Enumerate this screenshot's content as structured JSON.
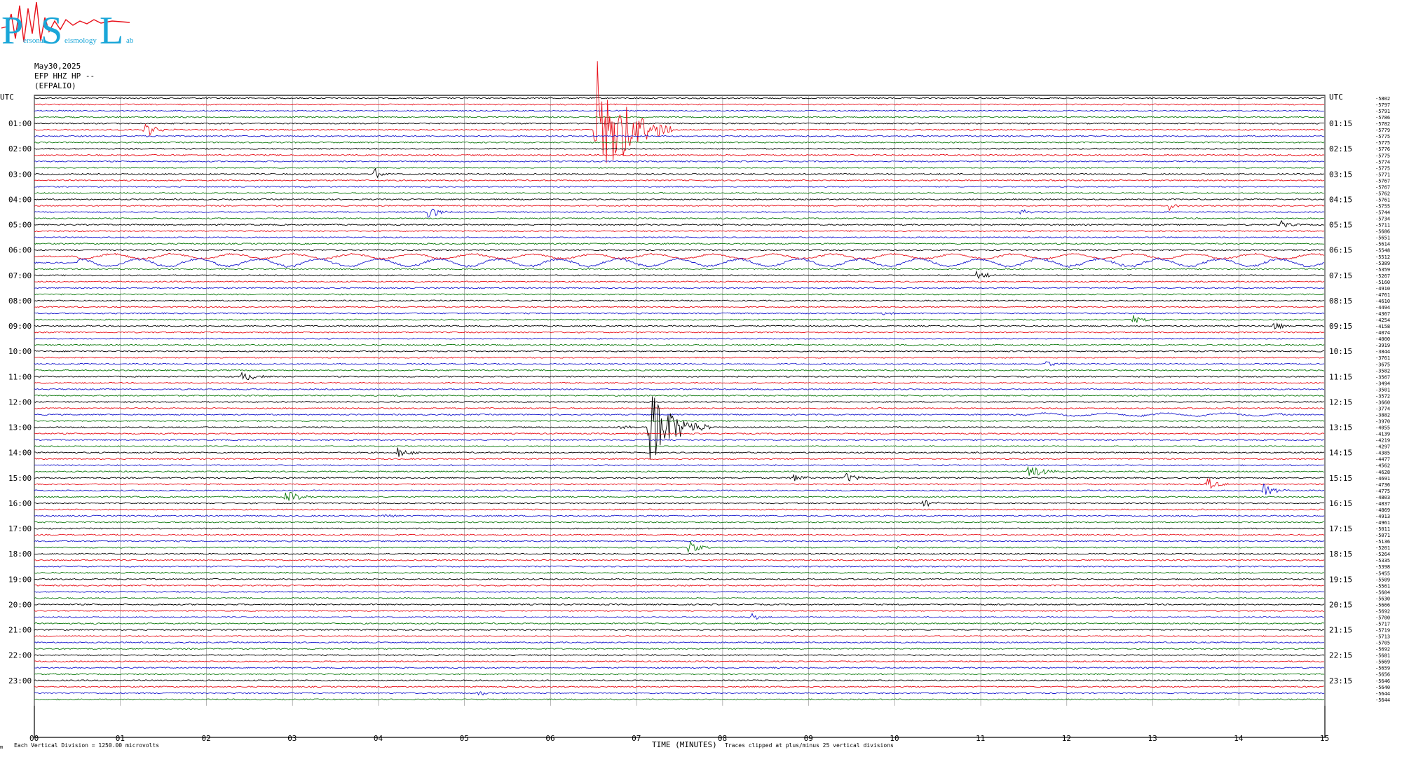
{
  "logo": {
    "letters": [
      "P",
      "S",
      "L"
    ],
    "words": [
      "ersonal",
      "eismology",
      "ab"
    ],
    "colors": {
      "letters": "#1aa6d8",
      "wave": "#e8111b"
    }
  },
  "header": {
    "date": "May30,2025",
    "channel": "EFP HHZ HP --",
    "station": "(EFPALIO)"
  },
  "axes": {
    "left_label": "UTC",
    "right_label": "UTC",
    "xlabel": "TIME (MINUTES)",
    "footer_left": "Each Vertical Division = 1250.00 microvolts",
    "footer_right": "Traces clipped at plus/minus 25 vertical divisions",
    "corner_mark": "m"
  },
  "chart_data": {
    "type": "line",
    "title": "",
    "xlabel": "TIME (MINUTES)",
    "xlim": [
      0,
      15
    ],
    "x_ticks": [
      "00",
      "01",
      "02",
      "03",
      "04",
      "05",
      "06",
      "07",
      "08",
      "09",
      "10",
      "11",
      "12",
      "13",
      "14",
      "15"
    ],
    "rows_per_hour": 4,
    "line_minutes": 15,
    "trace_colors": [
      "#000000",
      "#e8111b",
      "#1a1acd",
      "#0f7a0f"
    ],
    "left_hour_labels": [
      "01:00",
      "02:00",
      "03:00",
      "04:00",
      "05:00",
      "06:00",
      "07:00",
      "08:00",
      "09:00",
      "10:00",
      "11:00",
      "12:00",
      "13:00",
      "14:00",
      "15:00",
      "16:00",
      "17:00",
      "18:00",
      "19:00",
      "20:00",
      "21:00",
      "22:00",
      "23:00"
    ],
    "right_hour_labels": [
      "01:15",
      "02:15",
      "03:15",
      "04:15",
      "05:15",
      "06:15",
      "07:15",
      "08:15",
      "09:15",
      "10:15",
      "11:15",
      "12:15",
      "13:15",
      "14:15",
      "15:15",
      "16:15",
      "17:15",
      "18:15",
      "19:15",
      "20:15",
      "21:15",
      "22:15",
      "23:15"
    ],
    "trace_offsets": [
      -5802,
      -5797,
      -5791,
      -5786,
      -5782,
      -5779,
      -5775,
      -5775,
      -5776,
      -5775,
      -5774,
      -5775,
      -5771,
      -5767,
      -5767,
      -5762,
      -5761,
      -5755,
      -5744,
      -5734,
      -5711,
      -5686,
      -5651,
      -5614,
      -5548,
      -5512,
      -5389,
      -5359,
      -5267,
      -5160,
      -4910,
      -4761,
      -4610,
      -4494,
      -4367,
      -4254,
      -4158,
      -4074,
      -4000,
      -3919,
      -3844,
      -3761,
      -3675,
      -3582,
      -3567,
      -3494,
      -3501,
      -3572,
      -3660,
      -3774,
      -3882,
      -3970,
      -4055,
      -4139,
      -4219,
      -4297,
      -4385,
      -4477,
      -4562,
      -4628,
      -4691,
      -4736,
      -4775,
      -4803,
      -4837,
      -4869,
      -4913,
      -4961,
      -5011,
      -5071,
      -5136,
      -5201,
      -5264,
      -5335,
      -5398,
      -5455,
      -5509,
      -5561,
      -5604,
      -5630,
      -5666,
      -5692,
      -5700,
      -5717,
      -5719,
      -5713,
      -5705,
      -5692,
      -5681,
      -5669,
      -5659,
      -5656,
      -5646,
      -5640,
      -5644,
      -5644
    ],
    "events": [
      {
        "row": 5,
        "minute": 1.28,
        "amp": 2.2,
        "dur": 0.35
      },
      {
        "row": 5,
        "minute": 6.52,
        "amp": 18,
        "dur": 0.9
      },
      {
        "row": 12,
        "minute": 3.95,
        "amp": 1.6,
        "dur": 0.2
      },
      {
        "row": 18,
        "minute": 4.57,
        "amp": 1.6,
        "dur": 0.35
      },
      {
        "row": 17,
        "minute": 13.18,
        "amp": 1.3,
        "dur": 0.25
      },
      {
        "row": 18,
        "minute": 11.45,
        "amp": 0.6,
        "dur": 0.4
      },
      {
        "row": 20,
        "minute": 14.48,
        "amp": 1.5,
        "dur": 0.25
      },
      {
        "row": 28,
        "minute": 10.95,
        "amp": 1.4,
        "dur": 0.3
      },
      {
        "row": 34,
        "minute": 9.85,
        "amp": 0.4,
        "dur": 0.3
      },
      {
        "row": 35,
        "minute": 12.75,
        "amp": 1.2,
        "dur": 0.3
      },
      {
        "row": 36,
        "minute": 14.38,
        "amp": 1.3,
        "dur": 0.25
      },
      {
        "row": 42,
        "minute": 11.75,
        "amp": 0.8,
        "dur": 0.3
      },
      {
        "row": 44,
        "minute": 2.4,
        "amp": 1.4,
        "dur": 0.4
      },
      {
        "row": 47,
        "minute": 4.2,
        "amp": 0.4,
        "dur": 0.3
      },
      {
        "row": 52,
        "minute": 7.15,
        "amp": 10,
        "dur": 0.7
      },
      {
        "row": 52,
        "minute": 6.8,
        "amp": 0.5,
        "dur": 0.4
      },
      {
        "row": 56,
        "minute": 4.22,
        "amp": 1.5,
        "dur": 0.3
      },
      {
        "row": 60,
        "minute": 8.8,
        "amp": 1.6,
        "dur": 0.3
      },
      {
        "row": 60,
        "minute": 9.42,
        "amp": 1.6,
        "dur": 0.3
      },
      {
        "row": 59,
        "minute": 11.55,
        "amp": 2.0,
        "dur": 0.45
      },
      {
        "row": 61,
        "minute": 13.62,
        "amp": 1.8,
        "dur": 0.3
      },
      {
        "row": 62,
        "minute": 14.28,
        "amp": 1.8,
        "dur": 0.3
      },
      {
        "row": 63,
        "minute": 2.92,
        "amp": 2.0,
        "dur": 0.35
      },
      {
        "row": 64,
        "minute": 10.32,
        "amp": 1.3,
        "dur": 0.3
      },
      {
        "row": 66,
        "minute": 4.05,
        "amp": 0.5,
        "dur": 0.3
      },
      {
        "row": 71,
        "minute": 7.6,
        "amp": 1.6,
        "dur": 0.3
      },
      {
        "row": 71,
        "minute": 10.02,
        "amp": 0.4,
        "dur": 0.25
      },
      {
        "row": 82,
        "minute": 8.32,
        "amp": 1.2,
        "dur": 0.25
      },
      {
        "row": 94,
        "minute": 5.15,
        "amp": 1.0,
        "dur": 0.25
      }
    ],
    "tremor": [
      {
        "row": 25,
        "from": 0.5,
        "to": 15,
        "amp": 1.0
      },
      {
        "row": 26,
        "from": 0.5,
        "to": 15,
        "amp": 1.6
      },
      {
        "row": 50,
        "from": 11.5,
        "to": 14.5,
        "amp": 0.6
      }
    ]
  }
}
